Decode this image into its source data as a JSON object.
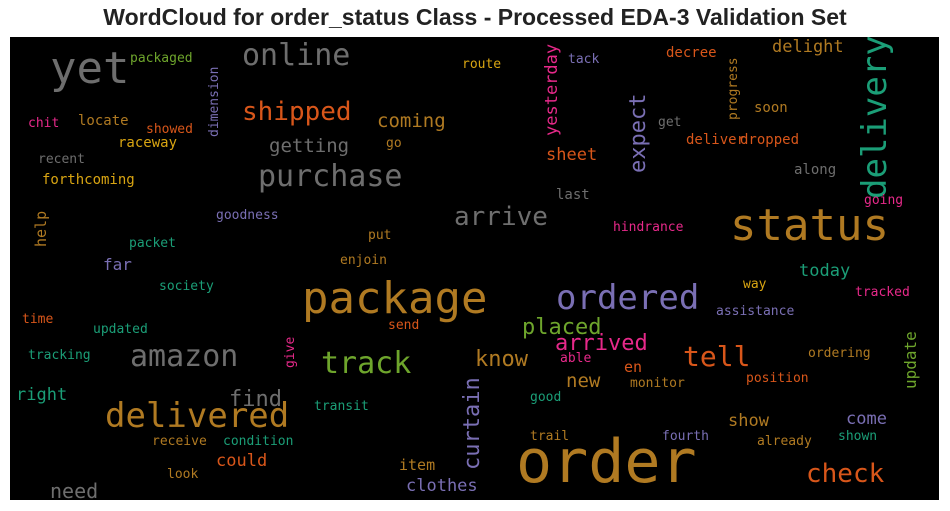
{
  "title": "WordCloud for order_status Class - Processed EDA-3 Validation Set",
  "colors": {
    "background": "#000000",
    "gray": "#6e6e6e",
    "brown": "#b07a22",
    "orange": "#d8561a",
    "purple": "#7a6fb4",
    "green": "#1b9e77",
    "pink": "#e7298a",
    "olive": "#6ea52c",
    "gold": "#d9a512"
  },
  "words": [
    "yet",
    "online",
    "packaged",
    "route",
    "tack",
    "decree",
    "delight",
    "delivery",
    "dimension",
    "progress",
    "yesterday",
    "soon",
    "chit",
    "locate",
    "showed",
    "shipped",
    "coming",
    "expect",
    "get",
    "deliver",
    "dropped",
    "raceway",
    "getting",
    "go",
    "sheet",
    "recent",
    "purchase",
    "along",
    "forthcoming",
    "last",
    "going",
    "status",
    "arrive",
    "help",
    "goodness",
    "hindrance",
    "put",
    "packet",
    "far",
    "enjoin",
    "today",
    "society",
    "package",
    "ordered",
    "way",
    "tracked",
    "time",
    "updated",
    "placed",
    "send",
    "assistance",
    "update",
    "amazon",
    "arrived",
    "tell",
    "give",
    "tracking",
    "track",
    "know",
    "able",
    "ordering",
    "en",
    "new",
    "monitor",
    "position",
    "right",
    "find",
    "curtain",
    "good",
    "transit",
    "delivered",
    "show",
    "come",
    "fourth",
    "shown",
    "trail",
    "already",
    "receive",
    "condition",
    "could",
    "order",
    "look",
    "item",
    "check",
    "need",
    "clothes"
  ]
}
